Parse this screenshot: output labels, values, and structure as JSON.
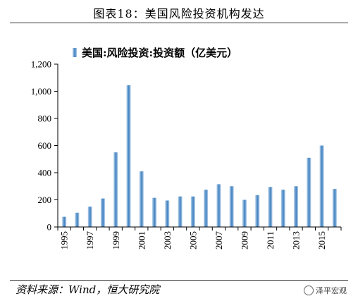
{
  "header": {
    "title": "图表18：美国风险投资机构发达"
  },
  "footer": {
    "source": "资料来源：Wind，恒大研究院",
    "watermark": "泽平宏观"
  },
  "chart_data": {
    "type": "bar",
    "title": "",
    "xlabel": "",
    "ylabel": "",
    "ylim": [
      0,
      1200
    ],
    "yticks": [
      0,
      200,
      400,
      600,
      800,
      1000,
      1200
    ],
    "ytick_labels": [
      "0",
      "200",
      "400",
      "600",
      "800",
      "1,000",
      "1,200"
    ],
    "categories": [
      "1995",
      "1996",
      "1997",
      "1998",
      "1999",
      "2000",
      "2001",
      "2002",
      "2003",
      "2004",
      "2005",
      "2006",
      "2007",
      "2008",
      "2009",
      "2010",
      "2011",
      "2012",
      "2013",
      "2014",
      "2015",
      "2016"
    ],
    "xtick_labels": [
      "1995",
      "",
      "1997",
      "",
      "1999",
      "",
      "2001",
      "",
      "2003",
      "",
      "2005",
      "",
      "2007",
      "",
      "2009",
      "",
      "2011",
      "",
      "2013",
      "",
      "2015",
      ""
    ],
    "series": [
      {
        "name": "美国:风险投资:投资额（亿美元）",
        "values": [
          75,
          105,
          150,
          210,
          550,
          1045,
          410,
          215,
          195,
          225,
          225,
          275,
          315,
          300,
          200,
          235,
          295,
          275,
          300,
          510,
          600,
          280
        ]
      }
    ],
    "legend": "top-center",
    "grid": false,
    "colors": {
      "bar_light": "#b8d3ec",
      "bar_dark": "#3f7fbf",
      "axis": "#000000"
    }
  }
}
